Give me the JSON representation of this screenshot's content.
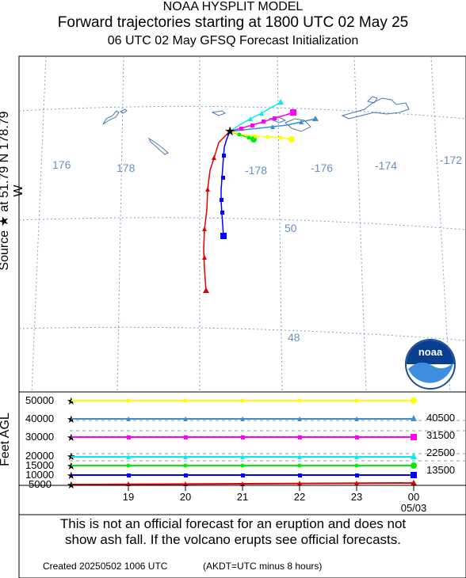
{
  "header": {
    "model": "NOAA HYSPLIT MODEL",
    "title": "Forward trajectories starting at 1800 UTC 02 May 25",
    "subtitle": "06 UTC 02 May    GFSQ  Forecast Initialization"
  },
  "source_label": "Source ★  at   51.79 N  178.79 W",
  "map": {
    "lon_labels": [
      "176",
      "178",
      "-178",
      "-176",
      "-174",
      "-172"
    ],
    "lat_labels": [
      "50",
      "48"
    ],
    "grid_color": "#7f9fcf",
    "label_color": "#6a8fc0",
    "coast_color": "#4a78b0"
  },
  "trajectories": [
    {
      "color": "#e00000",
      "marker": "triangle",
      "end_height_ft": ""
    },
    {
      "color": "#0000ff",
      "marker": "square",
      "end_height_ft": "13500"
    },
    {
      "color": "#00ee00",
      "marker": "circle",
      "end_height_ft": ""
    },
    {
      "color": "#00eeee",
      "marker": "triangle",
      "end_height_ft": "22500"
    },
    {
      "color": "#ff00ff",
      "marker": "square",
      "end_height_ft": "31500"
    },
    {
      "color": "#3f8fd0",
      "marker": "triangle",
      "end_height_ft": "40500"
    },
    {
      "color": "#ffff00",
      "marker": "circle",
      "end_height_ft": ""
    }
  ],
  "height_panel": {
    "axis_label": "Feet AGL",
    "y_ticks": [
      "50000",
      "40000",
      "30000",
      "20000",
      "15000",
      "10000",
      "5000"
    ],
    "x_ticks": [
      "19",
      "20",
      "21",
      "22",
      "23",
      "00"
    ],
    "x_date": "05/03",
    "right_labels": [
      "40500",
      "31500",
      "22500",
      "13500"
    ]
  },
  "logo_text": "noaa",
  "footer": {
    "notice_line1": "This is not an official forecast for an eruption and does not",
    "notice_line2": "show ash fall. If the volcano erupts see official forecasts.",
    "created": "Created 20250502 1006 UTC",
    "time_note": "(AKDT=UTC minus 8 hours)"
  }
}
